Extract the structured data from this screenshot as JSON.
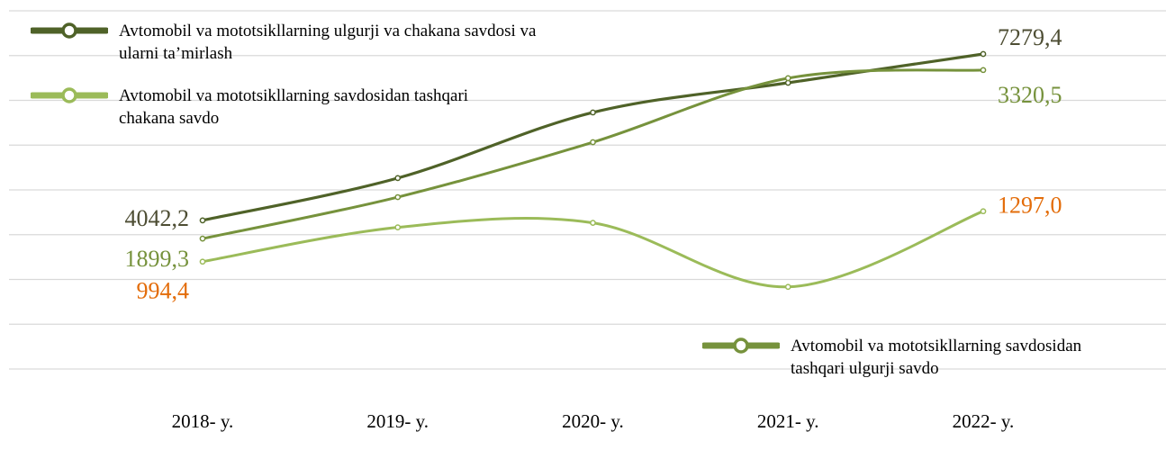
{
  "chart_data": {
    "type": "line",
    "categories": [
      "2018- y.",
      "2019- y.",
      "2020- y.",
      "2021- y.",
      "2022- y."
    ],
    "series": [
      {
        "name": "Avtomobil va  mototsikllarning ulgurji va chakana savdosi va ularni ta’mirlash",
        "color": "#4f6228",
        "label_color": "#4d4d33",
        "values": [
          4042.2,
          4865,
          6142,
          6719,
          7279.4
        ],
        "value_labels": [
          "4042,2",
          null,
          null,
          null,
          "7279,4"
        ],
        "ylim": [
          1150,
          8120
        ]
      },
      {
        "name": "Avtomobil va mototsikllarning savdosidan tashqari ulgurji savdo",
        "color": "#76923c",
        "label_color": "#76923c",
        "values": [
          1899.3,
          2249,
          2712,
          3252,
          3320.5
        ],
        "value_labels": [
          "1899,3",
          null,
          null,
          null,
          "3320,5"
        ],
        "ylim": [
          800,
          3820
        ]
      },
      {
        "name": "Avtomobil va  mototsikllarning savdosidan tashqari chakana savdo",
        "color": "#9bbb59",
        "label_color": "#e36c09",
        "values": [
          994.4,
          1200,
          1227,
          843,
          1297.0
        ],
        "value_labels": [
          "994,4",
          null,
          null,
          null,
          "1297,0"
        ],
        "ylim": [
          350,
          2500
        ]
      }
    ]
  }
}
